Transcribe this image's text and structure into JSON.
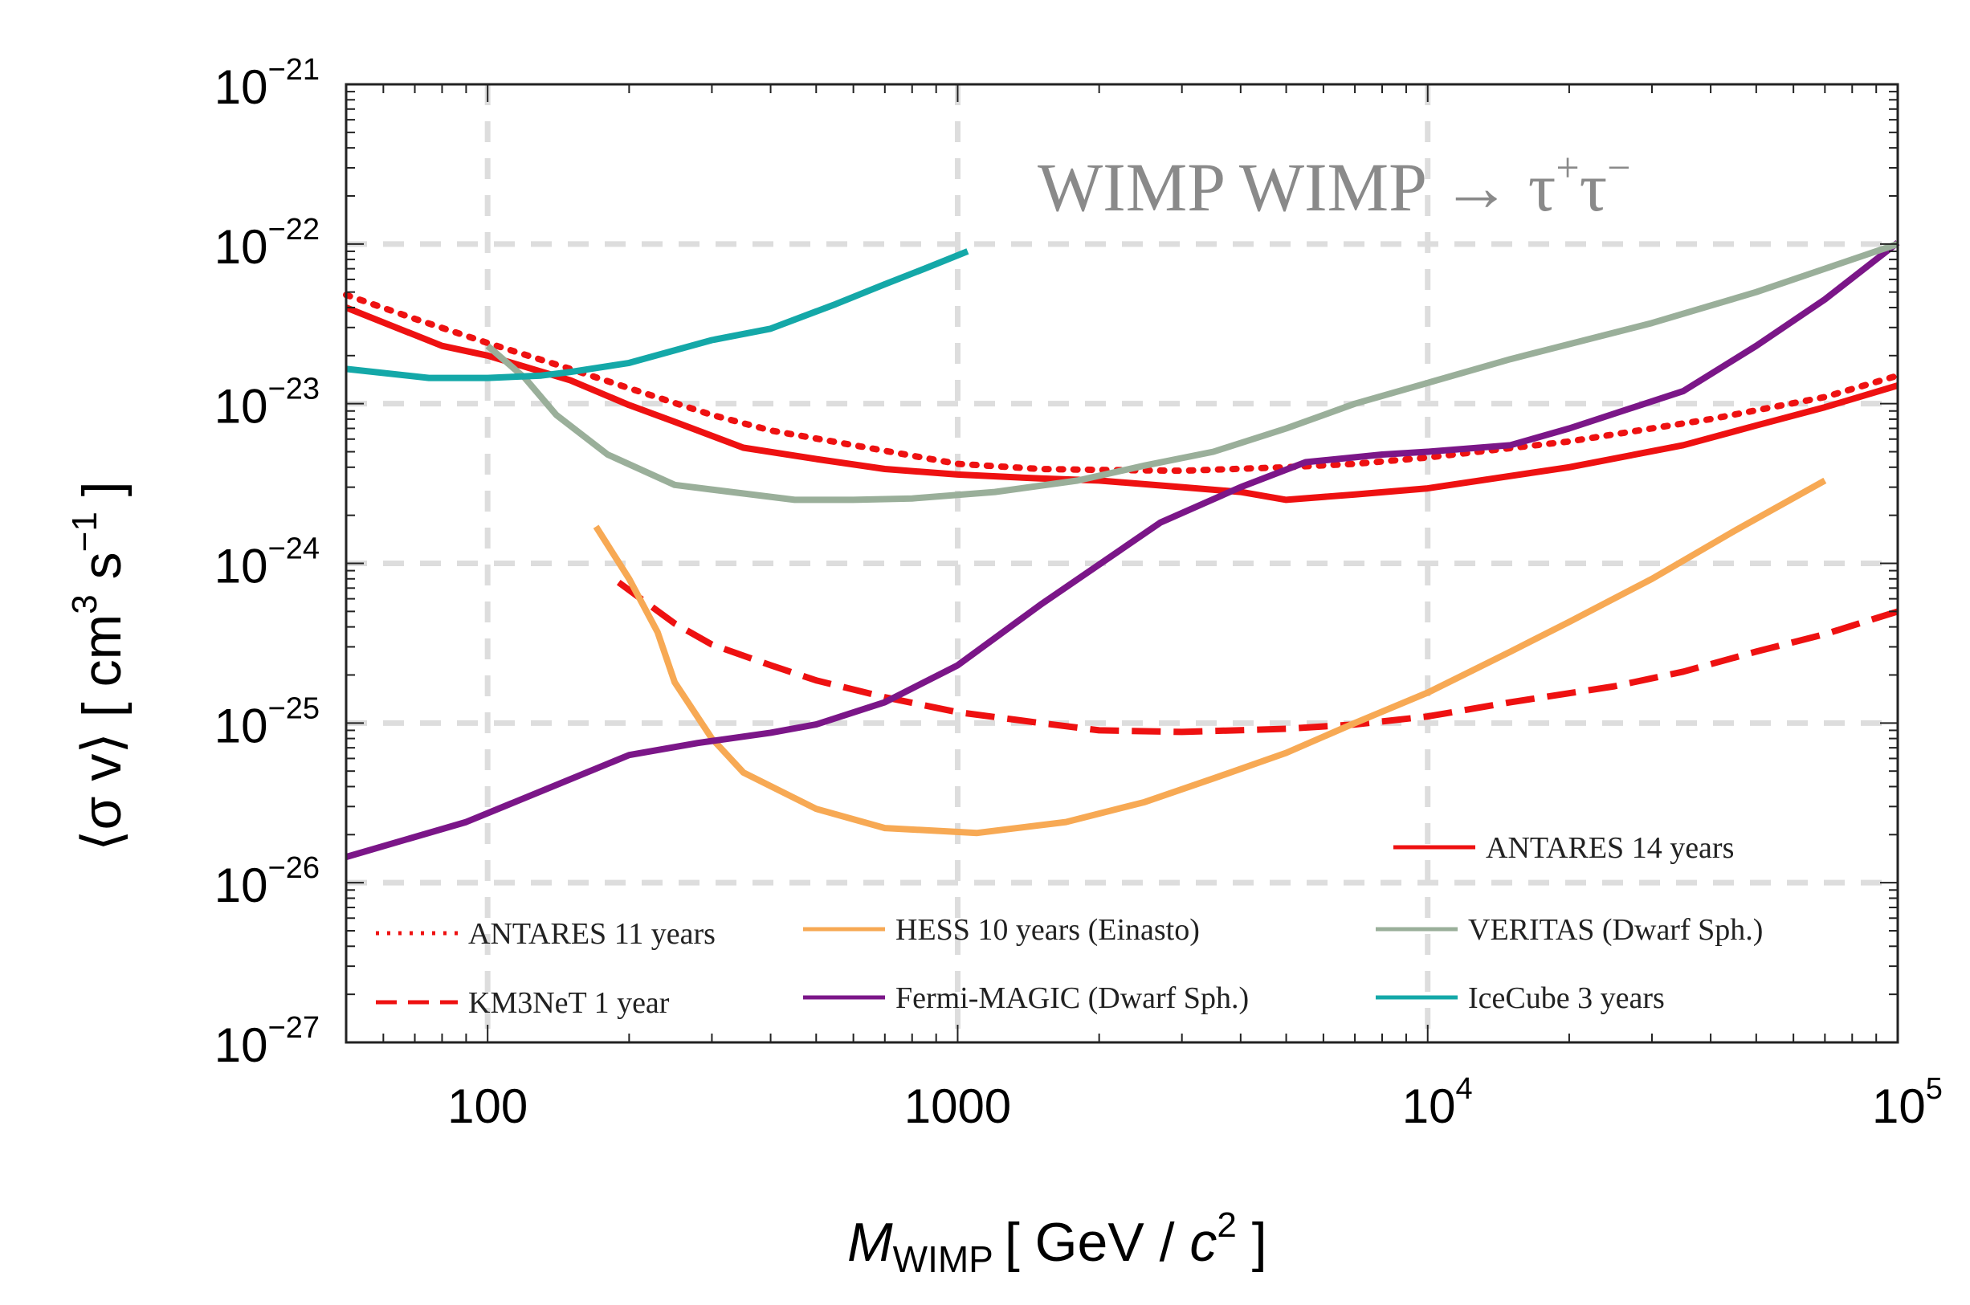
{
  "chart_data": {
    "type": "line",
    "title": "",
    "annotation": {
      "base": "WIMP WIMP → ττ",
      "parts": [
        "WIMP WIMP → τ",
        "+",
        "τ",
        "−"
      ]
    },
    "xlabel": {
      "main": "M",
      "sub": "WIMP",
      "unit_open": "[ GeV / ",
      "c": "c",
      "exp": "2",
      "unit_close": " ]"
    },
    "ylabel": {
      "main": "⟨σ v⟩ [ cm",
      "exp1": "3",
      "mid": " s",
      "exp2": "−1",
      "close": " ]"
    },
    "xscale": "log",
    "yscale": "log",
    "xlim": [
      50,
      100000
    ],
    "ylim": [
      1e-27,
      1e-21
    ],
    "x_ticks": [
      {
        "value": 100,
        "base": "100",
        "exp": ""
      },
      {
        "value": 1000,
        "base": "1000",
        "exp": ""
      },
      {
        "value": 10000,
        "base": "10",
        "exp": "4"
      },
      {
        "value": 100000,
        "base": "10",
        "exp": "5"
      }
    ],
    "y_ticks": [
      {
        "value": 1e-27,
        "base": "10",
        "exp": "−27"
      },
      {
        "value": 1e-26,
        "base": "10",
        "exp": "−26"
      },
      {
        "value": 1e-25,
        "base": "10",
        "exp": "−25"
      },
      {
        "value": 1e-24,
        "base": "10",
        "exp": "−24"
      },
      {
        "value": 1e-23,
        "base": "10",
        "exp": "−23"
      },
      {
        "value": 1e-22,
        "base": "10",
        "exp": "−22"
      },
      {
        "value": 1e-21,
        "base": "10",
        "exp": "−21"
      }
    ],
    "grid": true,
    "series": [
      {
        "name": "ANTARES 14 years",
        "color": "#ee1111",
        "style": "solid",
        "points": [
          [
            50,
            4e-23
          ],
          [
            80,
            2.3e-23
          ],
          [
            100,
            2e-23
          ],
          [
            150,
            1.4e-23
          ],
          [
            200,
            9.8e-24
          ],
          [
            250,
            7.7e-24
          ],
          [
            350,
            5.3e-24
          ],
          [
            500,
            4.5e-24
          ],
          [
            700,
            3.9e-24
          ],
          [
            1000,
            3.6e-24
          ],
          [
            1500,
            3.4e-24
          ],
          [
            2000,
            3.3e-24
          ],
          [
            3000,
            3e-24
          ],
          [
            4000,
            2.8e-24
          ],
          [
            5000,
            2.5e-24
          ],
          [
            7000,
            2.7e-24
          ],
          [
            10000,
            2.95e-24
          ],
          [
            20000,
            4e-24
          ],
          [
            35000,
            5.5e-24
          ],
          [
            50000,
            7.3e-24
          ],
          [
            70000,
            9.5e-24
          ],
          [
            100000,
            1.3e-23
          ]
        ]
      },
      {
        "name": "ANTARES 11 years",
        "color": "#ee1111",
        "style": "dotted",
        "points": [
          [
            50,
            4.8e-23
          ],
          [
            70,
            3.4e-23
          ],
          [
            100,
            2.4e-23
          ],
          [
            150,
            1.65e-23
          ],
          [
            200,
            1.25e-23
          ],
          [
            300,
            8.5e-24
          ],
          [
            400,
            6.8e-24
          ],
          [
            600,
            5.5e-24
          ],
          [
            1000,
            4.2e-24
          ],
          [
            1500,
            3.9e-24
          ],
          [
            2000,
            3.85e-24
          ],
          [
            3000,
            3.8e-24
          ],
          [
            5000,
            4e-24
          ],
          [
            7000,
            4.2e-24
          ],
          [
            10000,
            4.6e-24
          ],
          [
            20000,
            5.8e-24
          ],
          [
            40000,
            8e-24
          ],
          [
            70000,
            1.1e-23
          ],
          [
            100000,
            1.5e-23
          ]
        ]
      },
      {
        "name": "KM3NeT 1 year",
        "color": "#ee1111",
        "style": "dashed",
        "points": [
          [
            190,
            7.6e-25
          ],
          [
            250,
            4.2e-25
          ],
          [
            300,
            3.1e-25
          ],
          [
            400,
            2.3e-25
          ],
          [
            500,
            1.85e-25
          ],
          [
            700,
            1.45e-25
          ],
          [
            1000,
            1.17e-25
          ],
          [
            1500,
            1e-25
          ],
          [
            2000,
            9e-26
          ],
          [
            3000,
            8.8e-26
          ],
          [
            5000,
            9.2e-26
          ],
          [
            7000,
            9.8e-26
          ],
          [
            10000,
            1.1e-25
          ],
          [
            15000,
            1.35e-25
          ],
          [
            25000,
            1.7e-25
          ],
          [
            35000,
            2.1e-25
          ],
          [
            50000,
            2.8e-25
          ],
          [
            70000,
            3.6e-25
          ],
          [
            100000,
            5e-25
          ]
        ]
      },
      {
        "name": "HESS 10 years (Einasto)",
        "color": "#f7a954",
        "style": "solid",
        "points": [
          [
            170,
            1.7e-24
          ],
          [
            200,
            8e-25
          ],
          [
            230,
            3.7e-25
          ],
          [
            250,
            1.8e-25
          ],
          [
            300,
            8e-26
          ],
          [
            350,
            4.9e-26
          ],
          [
            500,
            2.9e-26
          ],
          [
            700,
            2.2e-26
          ],
          [
            1100,
            2.05e-26
          ],
          [
            1700,
            2.4e-26
          ],
          [
            2500,
            3.2e-26
          ],
          [
            3500,
            4.5e-26
          ],
          [
            5000,
            6.5e-26
          ],
          [
            7000,
            1e-25
          ],
          [
            10000,
            1.55e-25
          ],
          [
            15000,
            2.8e-25
          ],
          [
            20000,
            4.3e-25
          ],
          [
            30000,
            8e-25
          ],
          [
            45000,
            1.6e-24
          ],
          [
            70000,
            3.3e-24
          ]
        ]
      },
      {
        "name": "Fermi-MAGIC (Dwarf Sph.)",
        "color": "#7b1688",
        "style": "solid",
        "points": [
          [
            50,
            1.45e-26
          ],
          [
            90,
            2.4e-26
          ],
          [
            200,
            6.3e-26
          ],
          [
            280,
            7.5e-26
          ],
          [
            400,
            8.7e-26
          ],
          [
            500,
            9.8e-26
          ],
          [
            700,
            1.35e-25
          ],
          [
            1000,
            2.3e-25
          ],
          [
            1500,
            5.5e-25
          ],
          [
            2700,
            1.8e-24
          ],
          [
            4000,
            3e-24
          ],
          [
            5500,
            4.3e-24
          ],
          [
            8000,
            4.8e-24
          ],
          [
            10000,
            5e-24
          ],
          [
            15000,
            5.5e-24
          ],
          [
            20000,
            7e-24
          ],
          [
            35000,
            1.2e-23
          ],
          [
            50000,
            2.3e-23
          ],
          [
            70000,
            4.5e-23
          ],
          [
            100000,
            1.02e-22
          ]
        ]
      },
      {
        "name": "VERITAS (Dwarf Sph.)",
        "color": "#9aaf9a",
        "style": "solid",
        "points": [
          [
            100,
            2.3e-23
          ],
          [
            120,
            1.45e-23
          ],
          [
            140,
            8.5e-24
          ],
          [
            180,
            4.8e-24
          ],
          [
            250,
            3.1e-24
          ],
          [
            300,
            2.9e-24
          ],
          [
            450,
            2.5e-24
          ],
          [
            600,
            2.5e-24
          ],
          [
            800,
            2.55e-24
          ],
          [
            1200,
            2.8e-24
          ],
          [
            1800,
            3.3e-24
          ],
          [
            2500,
            4.1e-24
          ],
          [
            3500,
            5e-24
          ],
          [
            5000,
            7e-24
          ],
          [
            7000,
            1e-23
          ],
          [
            10000,
            1.35e-23
          ],
          [
            15000,
            1.9e-23
          ],
          [
            30000,
            3.2e-23
          ],
          [
            50000,
            5e-23
          ],
          [
            70000,
            7e-23
          ],
          [
            100000,
            1e-22
          ]
        ]
      },
      {
        "name": "IceCube 3 years",
        "color": "#14a8a8",
        "style": "solid",
        "points": [
          [
            50,
            1.65e-23
          ],
          [
            75,
            1.45e-23
          ],
          [
            100,
            1.45e-23
          ],
          [
            130,
            1.5e-23
          ],
          [
            150,
            1.58e-23
          ],
          [
            200,
            1.8e-23
          ],
          [
            300,
            2.5e-23
          ],
          [
            400,
            2.95e-23
          ],
          [
            550,
            4.2e-23
          ],
          [
            700,
            5.6e-23
          ],
          [
            850,
            7e-23
          ],
          [
            1050,
            9e-23
          ]
        ]
      }
    ],
    "legend": [
      {
        "label": "ANTARES 14 years",
        "series": 0
      },
      {
        "label": "ANTARES 11 years",
        "series": 1
      },
      {
        "label": "HESS 10 years (Einasto)",
        "series": 3
      },
      {
        "label": "VERITAS (Dwarf Sph.)",
        "series": 5
      },
      {
        "label": "KM3NeT 1 year",
        "series": 2
      },
      {
        "label": "Fermi-MAGIC (Dwarf Sph.)",
        "series": 4
      },
      {
        "label": "IceCube 3 years",
        "series": 6
      }
    ]
  }
}
